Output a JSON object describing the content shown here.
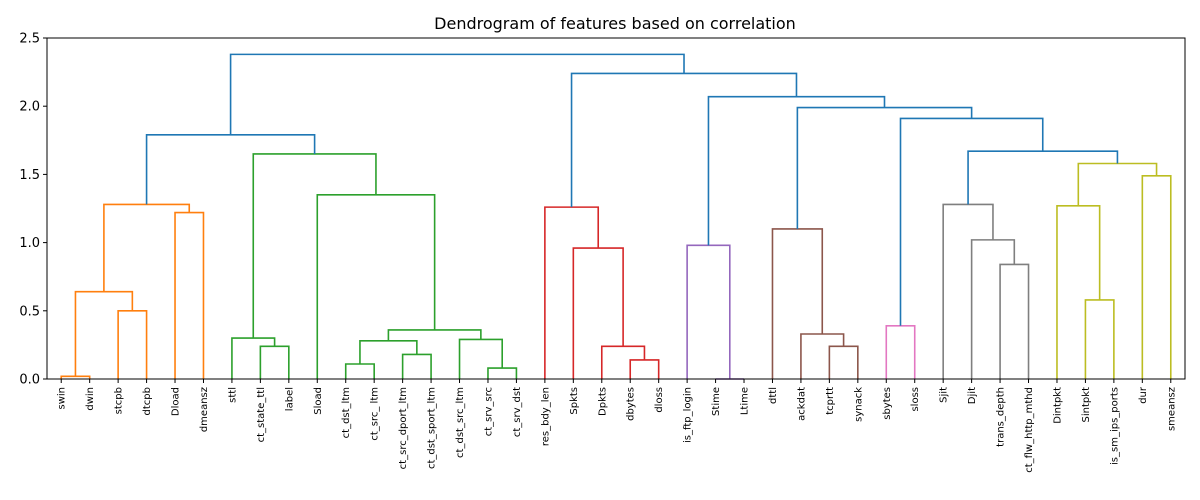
{
  "chart_data": {
    "type": "dendrogram",
    "title": "Dendrogram of features based on correlation",
    "xlabel": "",
    "ylabel": "",
    "ylim": [
      0,
      2.5
    ],
    "yticks": [
      "0.0",
      "0.5",
      "1.0",
      "1.5",
      "2.0",
      "2.5"
    ],
    "leaves": [
      "swin",
      "dwin",
      "stcpb",
      "dtcpb",
      "Dload",
      "dmeansz",
      "sttl",
      "ct_state_ttl",
      "label",
      "Sload",
      "ct_dst_ltm",
      "ct_src_ ltm",
      "ct_src_dport_ltm",
      "ct_dst_sport_ltm",
      "ct_dst_src_ltm",
      "ct_srv_src",
      "ct_srv_dst",
      "res_bdy_len",
      "Spkts",
      "Dpkts",
      "dbytes",
      "dloss",
      "is_ftp_login",
      "Stime",
      "Ltime",
      "dttl",
      "ackdat",
      "tcprtt",
      "synack",
      "sbytes",
      "sloss",
      "Sjit",
      "Djit",
      "trans_depth",
      "ct_flw_http_mthd",
      "Dintpkt",
      "Sintpkt",
      "is_sm_ips_ports",
      "dur",
      "smeansz"
    ],
    "colors": {
      "c1": "#ff7f0e",
      "c2": "#2ca02c",
      "c3": "#d62728",
      "c4": "#9467bd",
      "c5": "#8c564b",
      "c6": "#e377c2",
      "c7": "#7f7f7f",
      "c8": "#bcbd22",
      "above": "#1f77b4"
    },
    "merges": [
      {
        "l": "swin",
        "r": "dwin",
        "h": 0.02,
        "c": "c1"
      },
      {
        "l": "stcpb",
        "r": "dtcpb",
        "h": 0.5,
        "c": "c1"
      },
      {
        "l": "m0",
        "r": "m1",
        "h": 0.64,
        "c": "c1"
      },
      {
        "l": "Dload",
        "r": "dmeansz",
        "h": 1.22,
        "c": "c1"
      },
      {
        "l": "m2",
        "r": "m3",
        "h": 1.28,
        "c": "c1"
      },
      {
        "l": "ct_state_ttl",
        "r": "label",
        "h": 0.24,
        "c": "c2"
      },
      {
        "l": "sttl",
        "r": "m5",
        "h": 0.3,
        "c": "c2"
      },
      {
        "l": "ct_dst_ltm",
        "r": "ct_src_ ltm",
        "h": 0.11,
        "c": "c2"
      },
      {
        "l": "ct_src_dport_ltm",
        "r": "ct_dst_sport_ltm",
        "h": 0.18,
        "c": "c2"
      },
      {
        "l": "m7",
        "r": "m8",
        "h": 0.28,
        "c": "c2"
      },
      {
        "l": "ct_srv_src",
        "r": "ct_srv_dst",
        "h": 0.08,
        "c": "c2"
      },
      {
        "l": "ct_dst_src_ltm",
        "r": "m10",
        "h": 0.29,
        "c": "c2"
      },
      {
        "l": "m9",
        "r": "m11",
        "h": 0.36,
        "c": "c2"
      },
      {
        "l": "Sload",
        "r": "m12",
        "h": 1.35,
        "c": "c2"
      },
      {
        "l": "m6",
        "r": "m13",
        "h": 1.65,
        "c": "c2"
      },
      {
        "l": "m4",
        "r": "m14",
        "h": 1.79,
        "c": "above"
      },
      {
        "l": "dbytes",
        "r": "dloss",
        "h": 0.14,
        "c": "c3"
      },
      {
        "l": "Dpkts",
        "r": "m16",
        "h": 0.24,
        "c": "c3"
      },
      {
        "l": "Spkts",
        "r": "m17",
        "h": 0.96,
        "c": "c3"
      },
      {
        "l": "res_bdy_len",
        "r": "m18",
        "h": 1.26,
        "c": "c3"
      },
      {
        "l": "Stime",
        "r": "Ltime",
        "h": 0.0,
        "c": "c4"
      },
      {
        "l": "is_ftp_login",
        "r": "m20",
        "h": 0.98,
        "c": "c4"
      },
      {
        "l": "tcprtt",
        "r": "synack",
        "h": 0.24,
        "c": "c5"
      },
      {
        "l": "ackdat",
        "r": "m22",
        "h": 0.33,
        "c": "c5"
      },
      {
        "l": "dttl",
        "r": "m23",
        "h": 1.1,
        "c": "c5"
      },
      {
        "l": "sbytes",
        "r": "sloss",
        "h": 0.39,
        "c": "c6"
      },
      {
        "l": "trans_depth",
        "r": "ct_flw_http_mthd",
        "h": 0.84,
        "c": "c7"
      },
      {
        "l": "Djit",
        "r": "m26",
        "h": 1.02,
        "c": "c7"
      },
      {
        "l": "Sjit",
        "r": "m27",
        "h": 1.28,
        "c": "c7"
      },
      {
        "l": "Sintpkt",
        "r": "is_sm_ips_ports",
        "h": 0.58,
        "c": "c8"
      },
      {
        "l": "Dintpkt",
        "r": "m29",
        "h": 1.27,
        "c": "c8"
      },
      {
        "l": "dur",
        "r": "smeansz",
        "h": 1.49,
        "c": "c8"
      },
      {
        "l": "m30",
        "r": "m31",
        "h": 1.58,
        "c": "c8"
      },
      {
        "l": "m28",
        "r": "m32",
        "h": 1.67,
        "c": "above"
      },
      {
        "l": "m25",
        "r": "m33",
        "h": 1.91,
        "c": "above"
      },
      {
        "l": "m24",
        "r": "m34",
        "h": 1.99,
        "c": "above"
      },
      {
        "l": "m21",
        "r": "m35",
        "h": 2.07,
        "c": "above"
      },
      {
        "l": "m19",
        "r": "m36",
        "h": 2.24,
        "c": "above"
      },
      {
        "l": "m15",
        "r": "m37",
        "h": 2.38,
        "c": "above"
      }
    ]
  }
}
